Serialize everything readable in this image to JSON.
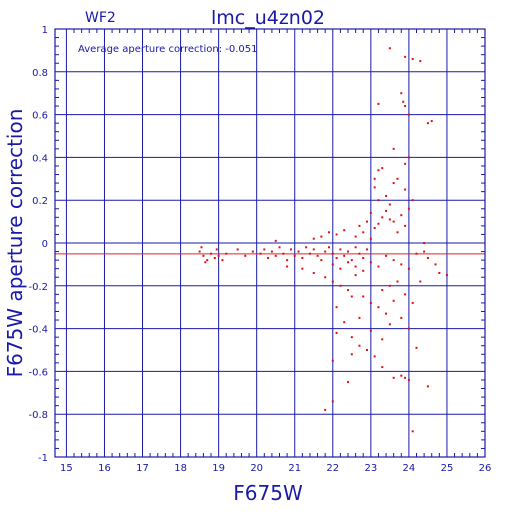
{
  "chart_data": {
    "type": "scatter",
    "title": "lmc_u4zn02",
    "corner_label": "WF2",
    "annotation": "Average aperture correction: -0.051",
    "xlabel": "F675W",
    "ylabel": "F675W aperture correction",
    "xlim": [
      14.7,
      26
    ],
    "ylim": [
      -1,
      1
    ],
    "x_ticks": [
      "15",
      "16",
      "17",
      "18",
      "19",
      "20",
      "21",
      "22",
      "23",
      "24",
      "25",
      "26"
    ],
    "y_ticks": [
      "-1",
      "-0.8",
      "-0.6",
      "-0.4",
      "-0.2",
      "0",
      "0.2",
      "0.4",
      "0.6",
      "0.8",
      "1"
    ],
    "grid": true,
    "reference_line_y": -0.051,
    "series": [
      {
        "points": [
          [
            23.5,
            0.91
          ],
          [
            23.9,
            0.87
          ],
          [
            24.1,
            0.86
          ],
          [
            24.3,
            0.85
          ],
          [
            23.8,
            0.7
          ],
          [
            23.85,
            0.66
          ],
          [
            23.9,
            0.64
          ],
          [
            24.0,
            0.6
          ],
          [
            23.2,
            0.65
          ],
          [
            24.6,
            0.57
          ],
          [
            24.5,
            0.56
          ],
          [
            23.6,
            0.44
          ],
          [
            23.9,
            0.37
          ],
          [
            24.0,
            0.4
          ],
          [
            23.2,
            0.34
          ],
          [
            23.6,
            0.28
          ],
          [
            23.1,
            0.26
          ],
          [
            23.9,
            0.25
          ],
          [
            24.5,
            -0.67
          ],
          [
            24.2,
            -0.49
          ],
          [
            24.1,
            -0.88
          ],
          [
            21.8,
            -0.78
          ],
          [
            22.0,
            -0.74
          ],
          [
            23.6,
            -0.63
          ],
          [
            23.8,
            -0.62
          ],
          [
            23.9,
            -0.63
          ],
          [
            24.0,
            -0.64
          ],
          [
            22.4,
            -0.65
          ],
          [
            22.0,
            -0.55
          ],
          [
            22.5,
            -0.52
          ],
          [
            23.3,
            -0.58
          ],
          [
            23.3,
            -0.45
          ],
          [
            23.0,
            -0.41
          ],
          [
            22.1,
            -0.42
          ],
          [
            22.7,
            -0.35
          ],
          [
            22.5,
            -0.25
          ],
          [
            23.5,
            -0.38
          ],
          [
            24.8,
            -0.14
          ],
          [
            24.7,
            -0.1
          ],
          [
            24.5,
            -0.07
          ],
          [
            24.4,
            -0.04
          ],
          [
            25.0,
            -0.15
          ],
          [
            18.5,
            -0.04
          ],
          [
            18.6,
            -0.06
          ],
          [
            18.7,
            -0.08
          ],
          [
            18.8,
            -0.05
          ],
          [
            18.9,
            -0.07
          ],
          [
            19.0,
            -0.06
          ],
          [
            19.1,
            -0.08
          ],
          [
            19.2,
            -0.05
          ],
          [
            18.55,
            -0.02
          ],
          [
            18.65,
            -0.09
          ],
          [
            18.95,
            -0.03
          ],
          [
            19.5,
            -0.03
          ],
          [
            19.7,
            -0.06
          ],
          [
            19.9,
            -0.04
          ],
          [
            20.1,
            -0.05
          ],
          [
            20.2,
            -0.03
          ],
          [
            20.3,
            -0.07
          ],
          [
            20.4,
            -0.04
          ],
          [
            20.5,
            -0.06
          ],
          [
            20.6,
            -0.02
          ],
          [
            20.7,
            -0.05
          ],
          [
            20.8,
            -0.08
          ],
          [
            20.9,
            -0.03
          ],
          [
            21.0,
            -0.06
          ],
          [
            21.1,
            -0.04
          ],
          [
            21.2,
            -0.07
          ],
          [
            21.3,
            -0.02
          ],
          [
            21.4,
            -0.05
          ],
          [
            21.5,
            -0.03
          ],
          [
            21.6,
            -0.06
          ],
          [
            21.7,
            -0.08
          ],
          [
            21.8,
            -0.04
          ],
          [
            21.9,
            -0.02
          ],
          [
            22.0,
            -0.05
          ],
          [
            22.1,
            -0.07
          ],
          [
            22.2,
            -0.03
          ],
          [
            22.3,
            -0.06
          ],
          [
            22.4,
            -0.04
          ],
          [
            22.5,
            -0.08
          ],
          [
            22.6,
            -0.02
          ],
          [
            22.7,
            -0.05
          ],
          [
            22.8,
            -0.07
          ],
          [
            22.9,
            -0.03
          ],
          [
            20.5,
            0.01
          ],
          [
            20.8,
            -0.11
          ],
          [
            21.2,
            -0.12
          ],
          [
            21.5,
            0.02
          ],
          [
            21.7,
            0.03
          ],
          [
            21.9,
            0.05
          ],
          [
            22.1,
            0.04
          ],
          [
            22.3,
            0.06
          ],
          [
            22.6,
            0.03
          ],
          [
            22.8,
            0.05
          ],
          [
            23.0,
            0.02
          ],
          [
            23.1,
            0.07
          ],
          [
            23.2,
            0.09
          ],
          [
            23.3,
            0.12
          ],
          [
            23.4,
            0.15
          ],
          [
            23.5,
            0.18
          ],
          [
            23.6,
            0.1
          ],
          [
            23.7,
            0.05
          ],
          [
            23.8,
            0.13
          ],
          [
            23.9,
            0.08
          ],
          [
            24.0,
            0.16
          ],
          [
            22.9,
            0.1
          ],
          [
            22.7,
            0.08
          ],
          [
            23.0,
            0.14
          ],
          [
            23.2,
            0.2
          ],
          [
            23.4,
            0.22
          ],
          [
            23.5,
            0.11
          ],
          [
            21.5,
            -0.14
          ],
          [
            21.8,
            -0.16
          ],
          [
            22.0,
            -0.18
          ],
          [
            22.2,
            -0.2
          ],
          [
            22.4,
            -0.22
          ],
          [
            22.6,
            -0.15
          ],
          [
            22.8,
            -0.25
          ],
          [
            23.0,
            -0.28
          ],
          [
            23.2,
            -0.3
          ],
          [
            23.4,
            -0.33
          ],
          [
            23.6,
            -0.27
          ],
          [
            23.8,
            -0.35
          ],
          [
            24.0,
            -0.4
          ],
          [
            22.1,
            -0.3
          ],
          [
            22.3,
            -0.37
          ],
          [
            22.5,
            -0.44
          ],
          [
            22.7,
            -0.48
          ],
          [
            22.9,
            -0.5
          ],
          [
            23.1,
            -0.53
          ],
          [
            23.3,
            -0.22
          ],
          [
            23.5,
            -0.2
          ],
          [
            23.7,
            -0.18
          ],
          [
            23.9,
            -0.24
          ],
          [
            24.1,
            -0.28
          ],
          [
            22.0,
            -0.1
          ],
          [
            22.2,
            -0.12
          ],
          [
            22.4,
            -0.09
          ],
          [
            22.6,
            -0.11
          ],
          [
            22.8,
            -0.13
          ],
          [
            23.0,
            -0.09
          ],
          [
            23.2,
            -0.11
          ],
          [
            23.4,
            -0.06
          ],
          [
            23.6,
            -0.08
          ],
          [
            23.8,
            -0.1
          ],
          [
            24.0,
            -0.12
          ],
          [
            24.2,
            -0.05
          ],
          [
            24.3,
            -0.18
          ],
          [
            24.4,
            0.0
          ],
          [
            23.1,
            0.3
          ],
          [
            23.3,
            0.35
          ],
          [
            23.7,
            0.3
          ],
          [
            24.1,
            0.2
          ]
        ]
      }
    ]
  }
}
